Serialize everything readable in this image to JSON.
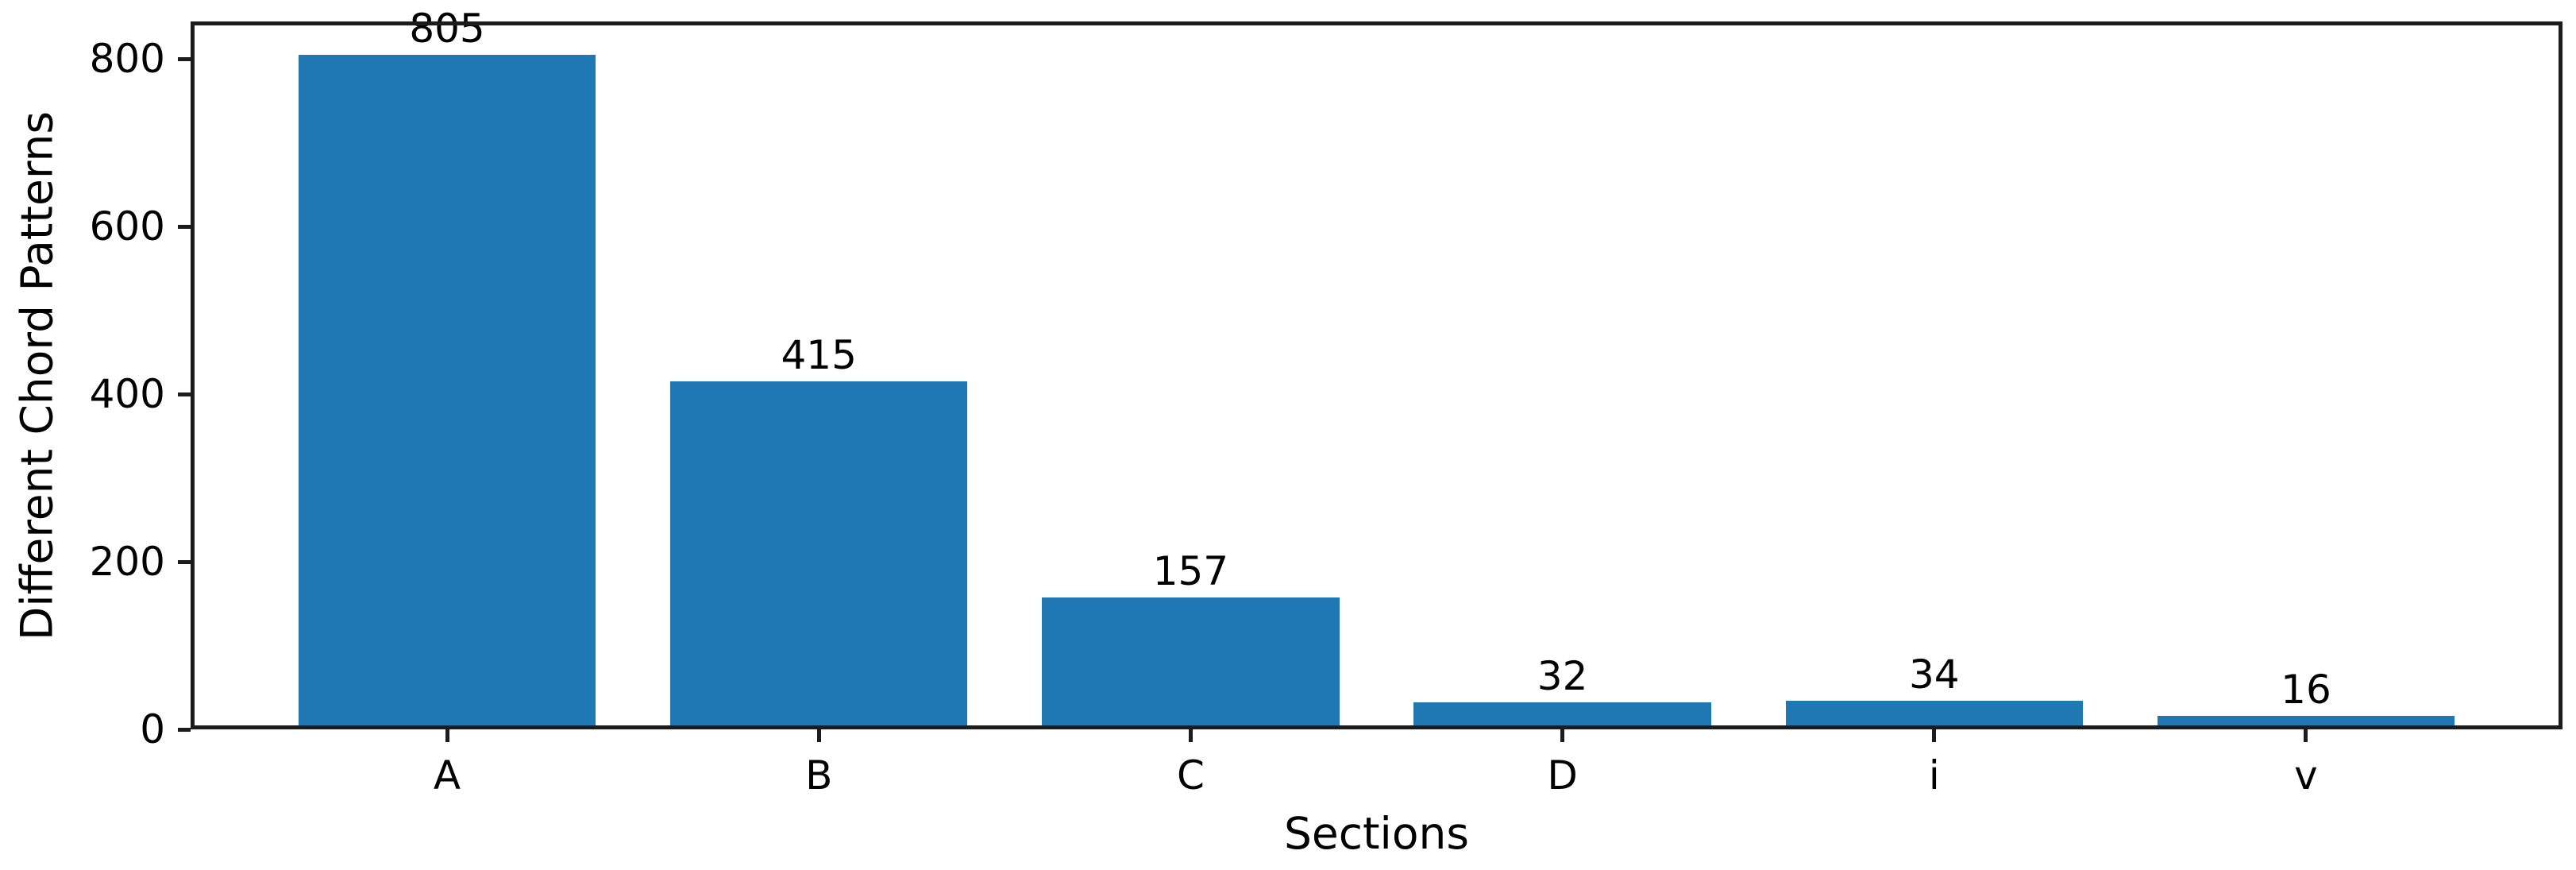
{
  "chart_data": {
    "type": "bar",
    "title": "",
    "categories": [
      "A",
      "B",
      "C",
      "D",
      "i",
      "v"
    ],
    "values": [
      805,
      415,
      157,
      32,
      34,
      16
    ],
    "bar_value_labels": [
      "805",
      "415",
      "157",
      "32",
      "34",
      "16"
    ],
    "xlabel": "Sections",
    "ylabel": "Different Chord Patterns",
    "yticks": [
      0,
      200,
      400,
      600,
      800
    ],
    "ytick_labels": [
      "0",
      "200",
      "400",
      "600",
      "800"
    ],
    "ylim": [
      0,
      845
    ],
    "bar_width_fraction": 0.8,
    "grid": false,
    "legend_position": "none",
    "colors": {
      "bar_fill": "#1f77b4",
      "axis_line": "#1c1c1c",
      "text": "#000000",
      "background": "#ffffff"
    }
  }
}
